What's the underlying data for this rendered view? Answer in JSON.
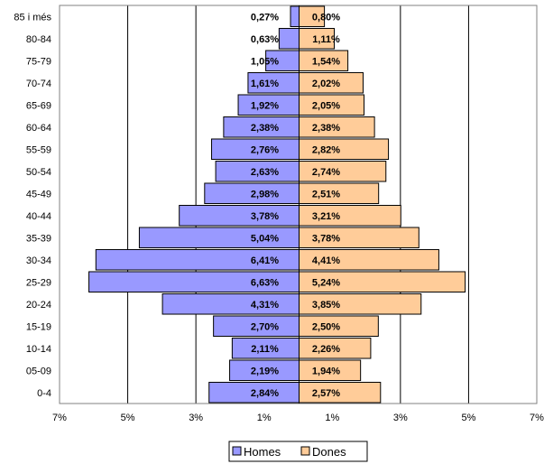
{
  "chart_data": {
    "type": "bar",
    "orientation": "horizontal",
    "layout": "population-pyramid",
    "categories": [
      "85 i més",
      "80-84",
      "75-79",
      "70-74",
      "65-69",
      "60-64",
      "55-59",
      "50-54",
      "45-49",
      "40-44",
      "35-39",
      "30-34",
      "25-29",
      "20-24",
      "15-19",
      "10-14",
      "05-09",
      "0-4"
    ],
    "series": [
      {
        "name": "Homes",
        "side": "left",
        "color": "#9999ff",
        "values": [
          0.27,
          0.63,
          1.05,
          1.61,
          1.92,
          2.38,
          2.76,
          2.63,
          2.98,
          3.78,
          5.04,
          6.41,
          6.63,
          4.31,
          2.7,
          2.11,
          2.19,
          2.84
        ],
        "labels": [
          "0,27%",
          "0,63%",
          "1,05%",
          "1,61%",
          "1,92%",
          "2,38%",
          "2,76%",
          "2,63%",
          "2,98%",
          "3,78%",
          "5,04%",
          "6,41%",
          "6,63%",
          "4,31%",
          "2,70%",
          "2,11%",
          "2,19%",
          "2,84%"
        ]
      },
      {
        "name": "Dones",
        "side": "right",
        "color": "#ffcc99",
        "values": [
          0.8,
          1.11,
          1.54,
          2.02,
          2.05,
          2.38,
          2.82,
          2.74,
          2.51,
          3.21,
          3.78,
          4.41,
          5.24,
          3.85,
          2.5,
          2.26,
          1.94,
          2.57
        ],
        "labels": [
          "0,80%",
          "1,11%",
          "1,54%",
          "2,02%",
          "2,05%",
          "2,38%",
          "2,82%",
          "2,74%",
          "2,51%",
          "3,21%",
          "3,78%",
          "4,41%",
          "5,24%",
          "3,85%",
          "2,50%",
          "2,26%",
          "1,94%",
          "2,57%"
        ]
      }
    ],
    "x_ticks": [
      {
        "value": -7,
        "label": "7%"
      },
      {
        "value": -5,
        "label": "5%"
      },
      {
        "value": -3,
        "label": "3%"
      },
      {
        "value": -1,
        "label": "1%"
      },
      {
        "value": 1,
        "label": "1%"
      },
      {
        "value": 3,
        "label": "3%"
      },
      {
        "value": 5,
        "label": "5%"
      },
      {
        "value": 7,
        "label": "7%"
      }
    ],
    "xlim": [
      -7,
      7
    ],
    "gridlines": "vertical",
    "legend_position": "bottom"
  }
}
